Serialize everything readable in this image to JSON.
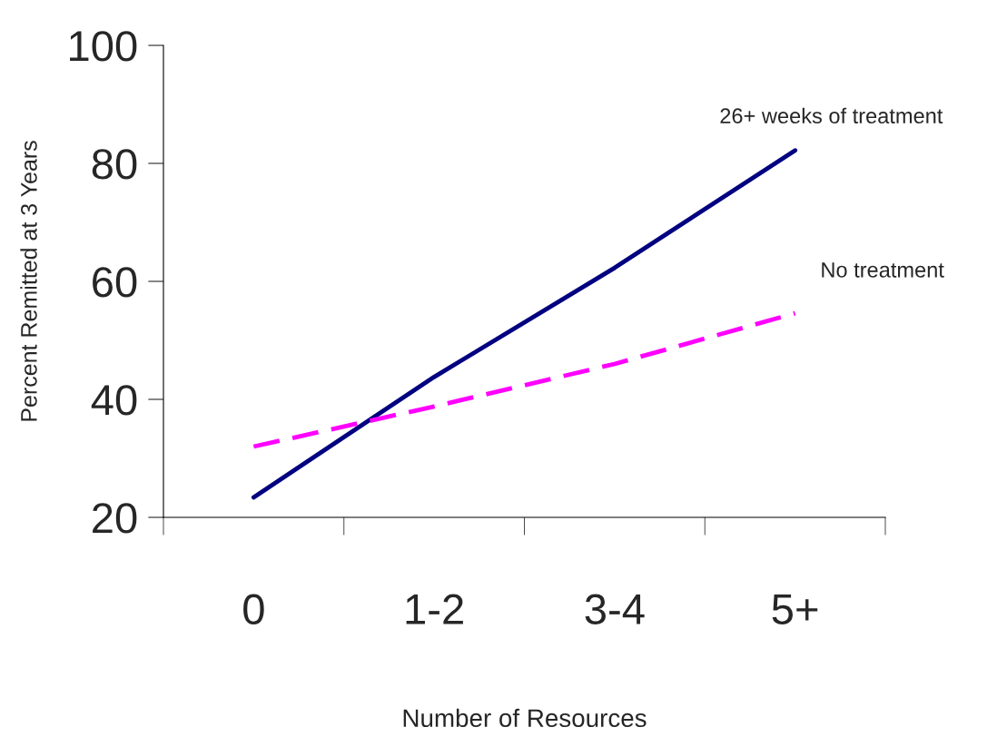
{
  "chart_data": {
    "type": "line",
    "xlabel": "Number of Resources",
    "ylabel": "Percent Remitted at 3 Years",
    "categories": [
      "0",
      "1-2",
      "3-4",
      "5+"
    ],
    "ylim": [
      20,
      100
    ],
    "yticks": [
      20,
      40,
      60,
      80,
      100
    ],
    "grid": false,
    "legend": false,
    "marker": "none",
    "series": [
      {
        "name": "26+ weeks of treatment",
        "color": "#000080",
        "line_style": "solid",
        "values": [
          23.4,
          43.8,
          62.3,
          82.2
        ]
      },
      {
        "name": "No treatment",
        "color": "#ff00ff",
        "line_style": "dashed",
        "values": [
          32,
          38.8,
          46,
          54.6
        ]
      }
    ]
  }
}
